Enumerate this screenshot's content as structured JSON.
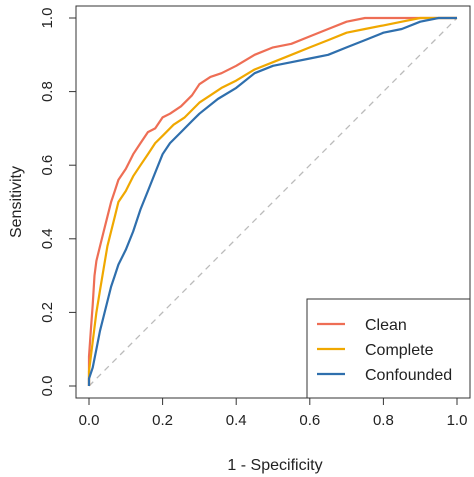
{
  "chart_data": {
    "type": "line",
    "title": "",
    "xlabel": "1 - Specificity",
    "ylabel": "Sensitivity",
    "xlim": [
      0,
      1
    ],
    "ylim": [
      0,
      1
    ],
    "x_ticks": [
      "0.0",
      "0.2",
      "0.4",
      "0.6",
      "0.8",
      "1.0"
    ],
    "y_ticks": [
      "0.0",
      "0.2",
      "0.4",
      "0.6",
      "0.8",
      "1.0"
    ],
    "grid": false,
    "legend_position": "bottom-right",
    "reference_line": {
      "style": "dashed",
      "color": "#bbbbbb",
      "from": [
        0,
        0
      ],
      "to": [
        1,
        1
      ]
    },
    "series": [
      {
        "name": "Clean",
        "color": "#ee6e55",
        "points": [
          [
            0,
            0
          ],
          [
            0,
            0.08
          ],
          [
            0.005,
            0.15
          ],
          [
            0.01,
            0.22
          ],
          [
            0.015,
            0.3
          ],
          [
            0.02,
            0.34
          ],
          [
            0.03,
            0.38
          ],
          [
            0.04,
            0.42
          ],
          [
            0.05,
            0.46
          ],
          [
            0.06,
            0.5
          ],
          [
            0.07,
            0.53
          ],
          [
            0.08,
            0.56
          ],
          [
            0.1,
            0.59
          ],
          [
            0.12,
            0.63
          ],
          [
            0.14,
            0.66
          ],
          [
            0.16,
            0.69
          ],
          [
            0.18,
            0.7
          ],
          [
            0.2,
            0.73
          ],
          [
            0.22,
            0.74
          ],
          [
            0.25,
            0.76
          ],
          [
            0.28,
            0.79
          ],
          [
            0.3,
            0.82
          ],
          [
            0.33,
            0.84
          ],
          [
            0.36,
            0.85
          ],
          [
            0.4,
            0.87
          ],
          [
            0.45,
            0.9
          ],
          [
            0.5,
            0.92
          ],
          [
            0.55,
            0.93
          ],
          [
            0.6,
            0.95
          ],
          [
            0.65,
            0.97
          ],
          [
            0.7,
            0.99
          ],
          [
            0.75,
            1.0
          ],
          [
            0.85,
            1.0
          ],
          [
            1,
            1
          ]
        ]
      },
      {
        "name": "Complete",
        "color": "#f0a800",
        "points": [
          [
            0,
            0
          ],
          [
            0,
            0.04
          ],
          [
            0.01,
            0.12
          ],
          [
            0.02,
            0.2
          ],
          [
            0.03,
            0.26
          ],
          [
            0.04,
            0.32
          ],
          [
            0.05,
            0.38
          ],
          [
            0.06,
            0.42
          ],
          [
            0.07,
            0.46
          ],
          [
            0.08,
            0.5
          ],
          [
            0.1,
            0.53
          ],
          [
            0.12,
            0.57
          ],
          [
            0.14,
            0.6
          ],
          [
            0.16,
            0.63
          ],
          [
            0.18,
            0.66
          ],
          [
            0.2,
            0.68
          ],
          [
            0.23,
            0.71
          ],
          [
            0.26,
            0.73
          ],
          [
            0.3,
            0.77
          ],
          [
            0.33,
            0.79
          ],
          [
            0.36,
            0.81
          ],
          [
            0.4,
            0.83
          ],
          [
            0.45,
            0.86
          ],
          [
            0.5,
            0.88
          ],
          [
            0.55,
            0.9
          ],
          [
            0.6,
            0.92
          ],
          [
            0.65,
            0.94
          ],
          [
            0.7,
            0.96
          ],
          [
            0.75,
            0.97
          ],
          [
            0.8,
            0.98
          ],
          [
            0.85,
            0.99
          ],
          [
            0.9,
            1.0
          ],
          [
            1,
            1
          ]
        ]
      },
      {
        "name": "Confounded",
        "color": "#2f6fad",
        "points": [
          [
            0,
            0
          ],
          [
            0,
            0.02
          ],
          [
            0.01,
            0.05
          ],
          [
            0.02,
            0.1
          ],
          [
            0.03,
            0.15
          ],
          [
            0.04,
            0.19
          ],
          [
            0.05,
            0.23
          ],
          [
            0.06,
            0.27
          ],
          [
            0.07,
            0.3
          ],
          [
            0.08,
            0.33
          ],
          [
            0.1,
            0.37
          ],
          [
            0.12,
            0.42
          ],
          [
            0.14,
            0.48
          ],
          [
            0.16,
            0.53
          ],
          [
            0.18,
            0.58
          ],
          [
            0.2,
            0.63
          ],
          [
            0.22,
            0.66
          ],
          [
            0.25,
            0.69
          ],
          [
            0.28,
            0.72
          ],
          [
            0.3,
            0.74
          ],
          [
            0.35,
            0.78
          ],
          [
            0.4,
            0.81
          ],
          [
            0.45,
            0.85
          ],
          [
            0.5,
            0.87
          ],
          [
            0.55,
            0.88
          ],
          [
            0.6,
            0.89
          ],
          [
            0.65,
            0.9
          ],
          [
            0.7,
            0.92
          ],
          [
            0.75,
            0.94
          ],
          [
            0.8,
            0.96
          ],
          [
            0.85,
            0.97
          ],
          [
            0.9,
            0.99
          ],
          [
            0.95,
            1.0
          ],
          [
            1,
            1
          ]
        ]
      }
    ]
  }
}
